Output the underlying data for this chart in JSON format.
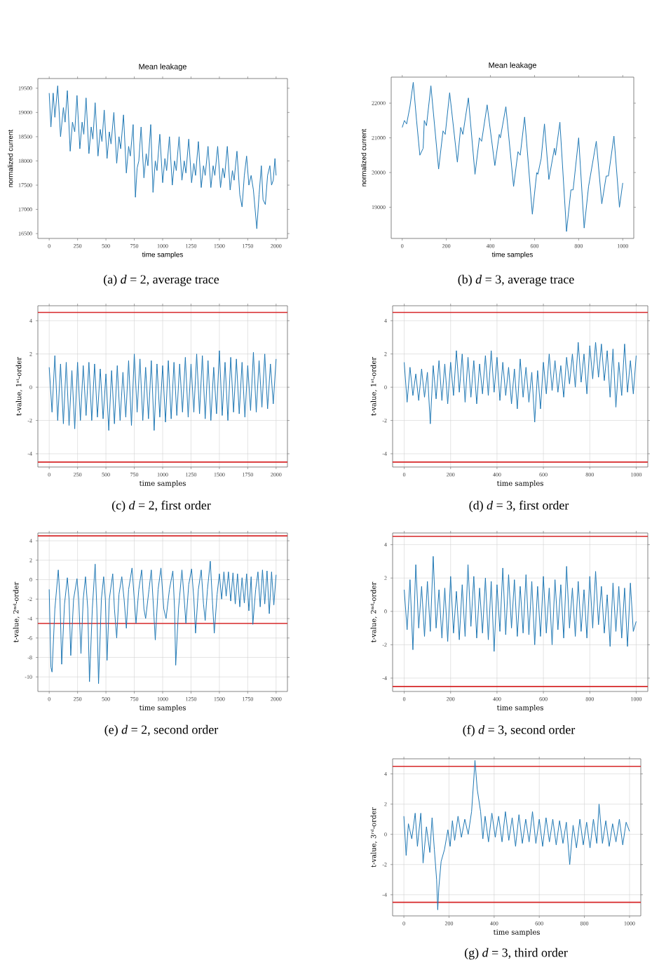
{
  "chart_data": [
    {
      "type": "line",
      "title": "Mean leakage",
      "xlabel": "time samples",
      "ylabel": "normalized current",
      "annotations": [
        "(a) *d* = 2, average trace"
      ],
      "xlim": [
        -100,
        2100
      ],
      "ylim": [
        16400,
        19700
      ],
      "xticks": [
        0,
        250,
        500,
        750,
        1000,
        1250,
        1500,
        1750,
        2000
      ],
      "yticks": [
        16500,
        17000,
        17500,
        18000,
        18500,
        19000,
        19500
      ],
      "grid": false,
      "series": [
        {
          "color": "#1f77b4",
          "x": [
            0,
            15,
            35,
            50,
            75,
            100,
            125,
            140,
            160,
            185,
            205,
            225,
            245,
            270,
            290,
            305,
            325,
            350,
            370,
            385,
            405,
            430,
            450,
            465,
            485,
            510,
            530,
            545,
            570,
            595,
            615,
            630,
            655,
            680,
            700,
            715,
            740,
            760,
            775,
            790,
            810,
            835,
            855,
            870,
            895,
            915,
            935,
            950,
            975,
            1000,
            1020,
            1035,
            1060,
            1085,
            1105,
            1120,
            1145,
            1170,
            1190,
            1205,
            1230,
            1255,
            1275,
            1290,
            1315,
            1340,
            1360,
            1375,
            1400,
            1425,
            1445,
            1460,
            1485,
            1510,
            1530,
            1545,
            1570,
            1595,
            1615,
            1630,
            1655,
            1680,
            1700,
            1720,
            1740,
            1760,
            1780,
            1800,
            1830,
            1850,
            1870,
            1885,
            1905,
            1925,
            1945,
            1960,
            1975,
            1990,
            2000
          ],
          "values": [
            19400,
            18700,
            19400,
            18900,
            19550,
            18500,
            19100,
            18800,
            19450,
            18200,
            18800,
            18600,
            19350,
            18250,
            18800,
            18550,
            19300,
            18150,
            18700,
            18450,
            19200,
            18100,
            18650,
            18400,
            19050,
            18050,
            18600,
            18350,
            19000,
            17950,
            18500,
            18250,
            18950,
            17750,
            18300,
            18100,
            18750,
            17250,
            17850,
            18000,
            18700,
            17650,
            18150,
            17900,
            18750,
            17350,
            18000,
            17800,
            18550,
            17550,
            18050,
            17800,
            18500,
            17500,
            18000,
            17800,
            18500,
            17600,
            18000,
            17750,
            18450,
            17550,
            17950,
            17700,
            18400,
            17450,
            17900,
            17700,
            18300,
            17450,
            17900,
            17700,
            18300,
            17450,
            17850,
            17650,
            18300,
            17400,
            17800,
            17600,
            18200,
            17300,
            17050,
            17700,
            18100,
            17500,
            17700,
            17400,
            16600,
            17300,
            17900,
            17200,
            17100,
            17700,
            17900,
            17500,
            17600,
            18050,
            17700
          ]
        }
      ]
    },
    {
      "type": "line",
      "title": "Mean leakage",
      "xlabel": "time samples",
      "ylabel": "normalized current",
      "annotations": [
        "(b) *d* = 3, average trace"
      ],
      "xlim": [
        -50,
        1050
      ],
      "ylim": [
        18100,
        22750
      ],
      "xticks": [
        0,
        200,
        400,
        600,
        800,
        1000
      ],
      "yticks": [
        19000,
        20000,
        21000,
        22000
      ],
      "grid": false,
      "series": [
        {
          "color": "#1f77b4",
          "x": [
            0,
            10,
            20,
            35,
            50,
            65,
            80,
            95,
            100,
            110,
            130,
            165,
            185,
            195,
            215,
            250,
            265,
            275,
            300,
            330,
            350,
            360,
            385,
            420,
            440,
            445,
            470,
            505,
            525,
            535,
            555,
            590,
            610,
            615,
            630,
            645,
            665,
            690,
            695,
            715,
            745,
            765,
            775,
            800,
            825,
            845,
            880,
            905,
            925,
            935,
            960,
            985,
            1000
          ],
          "values": [
            21300,
            21500,
            21400,
            21900,
            22600,
            21500,
            20500,
            20700,
            21500,
            21350,
            22500,
            20100,
            21200,
            21100,
            22300,
            20300,
            21300,
            21100,
            22150,
            19950,
            21000,
            20900,
            21950,
            20200,
            21100,
            21000,
            21900,
            19600,
            20600,
            20500,
            21600,
            18800,
            20000,
            19950,
            20400,
            21400,
            19800,
            20700,
            20500,
            21450,
            18300,
            19500,
            19500,
            21000,
            18400,
            19600,
            20900,
            19100,
            19900,
            19900,
            21050,
            19000,
            19700
          ]
        }
      ]
    },
    {
      "type": "line",
      "xlabel": "time samples",
      "ylabel": "t-value, 1ˢᵗ-order",
      "annotations": [
        "(c) *d* = 2, first order"
      ],
      "xlim": [
        -100,
        2100
      ],
      "ylim": [
        -4.8,
        4.9
      ],
      "xticks": [
        0,
        250,
        500,
        750,
        1000,
        1250,
        1500,
        1750,
        2000
      ],
      "yticks": [
        -4,
        -2,
        0,
        2,
        4
      ],
      "grid": true,
      "ref_lines": [
        {
          "axis": "y",
          "value": 4.5,
          "color": "#d62728"
        },
        {
          "axis": "y",
          "value": -4.5,
          "color": "#d62728"
        }
      ],
      "series": [
        {
          "color": "#1f77b4",
          "x": [
            0,
            25,
            50,
            75,
            100,
            125,
            150,
            175,
            200,
            225,
            250,
            275,
            300,
            325,
            350,
            375,
            400,
            425,
            450,
            475,
            500,
            525,
            550,
            575,
            600,
            625,
            650,
            675,
            700,
            725,
            750,
            775,
            800,
            825,
            850,
            875,
            900,
            925,
            950,
            975,
            1000,
            1025,
            1050,
            1075,
            1100,
            1125,
            1150,
            1175,
            1200,
            1225,
            1250,
            1275,
            1300,
            1325,
            1350,
            1375,
            1400,
            1425,
            1450,
            1475,
            1500,
            1525,
            1550,
            1575,
            1600,
            1625,
            1650,
            1675,
            1700,
            1725,
            1750,
            1775,
            1800,
            1825,
            1850,
            1875,
            1900,
            1925,
            1950,
            1975,
            2000
          ],
          "values": [
            1.2,
            -1.5,
            1.9,
            -2.0,
            1.4,
            -2.2,
            1.5,
            -2.3,
            1.0,
            -2.5,
            1.5,
            -2.0,
            1.3,
            -1.7,
            1.5,
            -2.0,
            1.4,
            -1.8,
            1.1,
            -1.9,
            0.8,
            -2.6,
            1.0,
            -2.2,
            1.3,
            -2.0,
            0.9,
            -1.8,
            1.6,
            -2.3,
            2.0,
            -1.5,
            1.7,
            -2.0,
            1.2,
            -1.9,
            1.6,
            -2.6,
            1.4,
            -1.8,
            1.3,
            -2.1,
            1.6,
            -1.9,
            1.5,
            -1.7,
            1.4,
            -1.5,
            1.8,
            -1.8,
            1.4,
            -1.5,
            2.0,
            -1.6,
            1.9,
            -1.9,
            1.6,
            -2.0,
            1.2,
            -1.6,
            2.2,
            -1.7,
            1.5,
            -2.0,
            1.8,
            -1.5,
            1.7,
            -1.6,
            1.5,
            -1.8,
            1.3,
            -1.4,
            2.1,
            -1.5,
            1.6,
            -1.2,
            2.0,
            -1.3,
            1.4,
            -1.0,
            1.7
          ]
        }
      ]
    },
    {
      "type": "line",
      "xlabel": "time samples",
      "ylabel": "t-value, 1ˢᵗ-order",
      "annotations": [
        "(d) *d* = 3, first order"
      ],
      "xlim": [
        -50,
        1050
      ],
      "ylim": [
        -4.8,
        4.9
      ],
      "xticks": [
        0,
        200,
        400,
        600,
        800,
        1000
      ],
      "yticks": [
        -4,
        -2,
        0,
        2,
        4
      ],
      "grid": true,
      "ref_lines": [
        {
          "axis": "y",
          "value": 4.5,
          "color": "#d62728"
        },
        {
          "axis": "y",
          "value": -4.5,
          "color": "#d62728"
        }
      ],
      "series": [
        {
          "color": "#1f77b4",
          "x": [
            0,
            12.5,
            25,
            37.5,
            50,
            62.5,
            75,
            87.5,
            100,
            112.5,
            125,
            137.5,
            150,
            162.5,
            175,
            187.5,
            200,
            212.5,
            225,
            237.5,
            250,
            262.5,
            275,
            287.5,
            300,
            312.5,
            325,
            337.5,
            350,
            362.5,
            375,
            387.5,
            400,
            412.5,
            425,
            437.5,
            450,
            462.5,
            475,
            487.5,
            500,
            512.5,
            525,
            537.5,
            550,
            562.5,
            575,
            587.5,
            600,
            612.5,
            625,
            637.5,
            650,
            662.5,
            675,
            687.5,
            700,
            712.5,
            725,
            737.5,
            750,
            762.5,
            775,
            787.5,
            800,
            812.5,
            825,
            837.5,
            850,
            862.5,
            875,
            887.5,
            900,
            912.5,
            925,
            937.5,
            950,
            962.5,
            975,
            987.5,
            1000
          ],
          "values": [
            1.5,
            -0.9,
            1.2,
            -0.5,
            0.8,
            -0.8,
            1.1,
            -0.6,
            0.9,
            -2.2,
            1.3,
            -0.7,
            1.6,
            -0.8,
            1.4,
            -1.0,
            1.5,
            -0.5,
            2.2,
            -0.3,
            2.0,
            -0.9,
            1.8,
            -0.6,
            1.6,
            -1.0,
            1.4,
            -0.4,
            1.9,
            -0.5,
            2.2,
            -0.3,
            1.8,
            -0.8,
            1.5,
            -0.5,
            1.2,
            -1.0,
            1.1,
            -1.3,
            1.7,
            -0.6,
            1.2,
            -0.9,
            0.9,
            -2.1,
            1.0,
            -1.3,
            1.5,
            -0.4,
            2.0,
            -0.2,
            1.6,
            -0.3,
            1.3,
            -0.6,
            1.8,
            0.2,
            2.0,
            0.0,
            2.7,
            0.3,
            2.0,
            -0.4,
            2.5,
            0.5,
            2.7,
            0.6,
            2.6,
            0.4,
            2.2,
            -0.6,
            2.3,
            -1.2,
            1.5,
            -0.5,
            2.6,
            -0.3,
            1.6,
            -0.4,
            1.9
          ]
        }
      ]
    },
    {
      "type": "line",
      "xlabel": "time samples",
      "ylabel": "t-value, 2ⁿᵈ-order",
      "annotations": [
        "(e) *d* = 2, second order"
      ],
      "xlim": [
        -100,
        2100
      ],
      "ylim": [
        -11.5,
        4.8
      ],
      "xticks": [
        0,
        250,
        500,
        750,
        1000,
        1250,
        1500,
        1750,
        2000
      ],
      "yticks": [
        -10,
        -8,
        -6,
        -4,
        -2,
        0,
        2,
        4
      ],
      "grid": true,
      "ref_lines": [
        {
          "axis": "y",
          "value": 4.5,
          "color": "#d62728"
        },
        {
          "axis": "y",
          "value": -4.5,
          "color": "#d62728"
        }
      ],
      "series": [
        {
          "color": "#1f77b4",
          "x": [
            0,
            15,
            25,
            50,
            80,
            95,
            110,
            135,
            160,
            175,
            190,
            215,
            245,
            260,
            280,
            300,
            320,
            340,
            355,
            380,
            405,
            420,
            435,
            460,
            480,
            495,
            510,
            530,
            560,
            575,
            595,
            615,
            640,
            660,
            680,
            700,
            730,
            750,
            765,
            790,
            815,
            835,
            850,
            880,
            900,
            920,
            935,
            960,
            985,
            1010,
            1030,
            1060,
            1090,
            1105,
            1115,
            1140,
            1170,
            1190,
            1205,
            1230,
            1255,
            1275,
            1290,
            1315,
            1340,
            1360,
            1375,
            1395,
            1420,
            1440,
            1455,
            1480,
            1500,
            1520,
            1540,
            1560,
            1580,
            1600,
            1620,
            1640,
            1660,
            1680,
            1700,
            1720,
            1740,
            1760,
            1780,
            1795,
            1820,
            1840,
            1860,
            1880,
            1900,
            1920,
            1940,
            1960,
            1980,
            2000
          ],
          "values": [
            -1.0,
            -9.0,
            -9.5,
            -3.0,
            1.0,
            -2.0,
            -8.7,
            -2.5,
            0.2,
            -2.0,
            -7.8,
            -2.0,
            0.1,
            -2.0,
            -7.6,
            -2.0,
            0.3,
            -3.0,
            -10.5,
            -3.0,
            1.6,
            -3.0,
            -10.7,
            -2.0,
            0.3,
            -2.0,
            -8.3,
            -2.0,
            0.6,
            -3.0,
            -6.0,
            -1.5,
            0.3,
            -2.0,
            -5.0,
            -1.0,
            1.2,
            -2.0,
            -4.5,
            -1.0,
            1.0,
            -3.0,
            -4.0,
            -1.0,
            1.0,
            -3.0,
            -6.2,
            -1.0,
            1.2,
            -3.0,
            -4.0,
            -1.0,
            0.9,
            -3.0,
            -8.8,
            -3.0,
            1.0,
            -2.0,
            -4.5,
            -0.5,
            1.1,
            -2.0,
            -5.5,
            -1.0,
            1.0,
            -2.5,
            -4.2,
            -1.0,
            1.9,
            -2.5,
            -5.5,
            -1.5,
            0.6,
            -2.0,
            0.8,
            -1.7,
            0.8,
            -2.2,
            0.7,
            -2.5,
            0.6,
            -2.8,
            0.2,
            -2.4,
            0.6,
            -3.2,
            0.3,
            -4.6,
            -1.0,
            0.8,
            -2.8,
            1.0,
            -2.5,
            0.9,
            -3.5,
            0.8,
            -2.6,
            0.5
          ]
        }
      ]
    },
    {
      "type": "line",
      "xlabel": "time samples",
      "ylabel": "t-value, 2ⁿᵈ-order",
      "annotations": [
        "(f) *d* = 3, second order"
      ],
      "xlim": [
        -50,
        1050
      ],
      "ylim": [
        -4.8,
        4.7
      ],
      "xticks": [
        0,
        200,
        400,
        600,
        800,
        1000
      ],
      "yticks": [
        -4,
        -2,
        0,
        2,
        4
      ],
      "grid": true,
      "ref_lines": [
        {
          "axis": "y",
          "value": 4.5,
          "color": "#d62728"
        },
        {
          "axis": "y",
          "value": -4.5,
          "color": "#d62728"
        }
      ],
      "series": [
        {
          "color": "#1f77b4",
          "x": [
            0,
            12.5,
            25,
            37.5,
            50,
            62.5,
            75,
            87.5,
            100,
            112.5,
            125,
            137.5,
            150,
            162.5,
            175,
            187.5,
            200,
            212.5,
            225,
            237.5,
            250,
            262.5,
            275,
            287.5,
            300,
            312.5,
            325,
            337.5,
            350,
            362.5,
            375,
            387.5,
            400,
            412.5,
            425,
            437.5,
            450,
            462.5,
            475,
            487.5,
            500,
            512.5,
            525,
            537.5,
            550,
            562.5,
            575,
            587.5,
            600,
            612.5,
            625,
            637.5,
            650,
            662.5,
            675,
            687.5,
            700,
            712.5,
            725,
            737.5,
            750,
            762.5,
            775,
            787.5,
            800,
            812.5,
            825,
            837.5,
            850,
            862.5,
            875,
            887.5,
            900,
            912.5,
            925,
            937.5,
            950,
            962.5,
            975,
            987.5,
            1000
          ],
          "values": [
            1.3,
            -1.1,
            1.9,
            -2.3,
            2.8,
            -1.0,
            1.5,
            -1.5,
            1.8,
            -1.2,
            3.3,
            -1.0,
            1.3,
            -1.6,
            1.4,
            -1.8,
            2.1,
            -1.3,
            1.2,
            -1.7,
            1.6,
            -1.5,
            2.8,
            -0.9,
            2.1,
            -1.6,
            1.4,
            -1.3,
            2.0,
            -1.7,
            1.8,
            -2.4,
            1.6,
            -1.2,
            2.6,
            -1.4,
            2.2,
            -1.0,
            1.9,
            -1.5,
            1.5,
            -1.3,
            2.2,
            -1.4,
            1.8,
            -2.0,
            1.5,
            -1.5,
            2.1,
            -1.3,
            1.4,
            -2.0,
            1.9,
            -1.1,
            1.6,
            -1.6,
            2.7,
            -1.0,
            1.4,
            -1.5,
            1.8,
            -1.2,
            1.3,
            -1.6,
            2.1,
            -1.0,
            2.4,
            -0.8,
            1.5,
            -1.3,
            1.0,
            -2.1,
            1.7,
            -1.2,
            1.5,
            -1.6,
            1.4,
            -2.1,
            1.7,
            -1.2,
            -0.6
          ]
        }
      ]
    },
    {
      "type": "line",
      "xlabel": "time samples",
      "ylabel": "t-value, 3ʳᵈ-order",
      "annotations": [
        "(g) *d* = 3, third order"
      ],
      "xlim": [
        -50,
        1050
      ],
      "ylim": [
        -5.4,
        5.0
      ],
      "xticks": [
        0,
        200,
        400,
        600,
        800,
        1000
      ],
      "yticks": [
        -4,
        -2,
        0,
        2,
        4
      ],
      "grid": true,
      "ref_lines": [
        {
          "axis": "y",
          "value": 4.5,
          "color": "#d62728"
        },
        {
          "axis": "y",
          "value": -4.5,
          "color": "#d62728"
        }
      ],
      "series": [
        {
          "color": "#1f77b4",
          "x": [
            0,
            10,
            20,
            35,
            50,
            60,
            75,
            85,
            100,
            115,
            125,
            135,
            145,
            150,
            155,
            165,
            180,
            195,
            205,
            215,
            225,
            240,
            255,
            270,
            285,
            300,
            310,
            315,
            325,
            340,
            350,
            360,
            375,
            390,
            405,
            420,
            435,
            450,
            465,
            480,
            495,
            510,
            525,
            540,
            555,
            570,
            585,
            600,
            615,
            630,
            645,
            660,
            675,
            690,
            705,
            720,
            735,
            750,
            765,
            780,
            795,
            810,
            825,
            840,
            855,
            865,
            880,
            895,
            910,
            925,
            940,
            955,
            970,
            985,
            1000
          ],
          "values": [
            1.2,
            -1.4,
            0.7,
            -0.3,
            1.4,
            -0.8,
            1.4,
            -1.9,
            0.5,
            -1.2,
            1.1,
            -1.0,
            -3.0,
            -5.0,
            -3.5,
            -1.8,
            -1.0,
            0.3,
            -0.8,
            0.9,
            -0.4,
            1.2,
            -0.2,
            1.0,
            0.0,
            1.5,
            3.7,
            4.9,
            3.0,
            1.5,
            -0.3,
            1.2,
            -0.5,
            1.4,
            -0.2,
            1.2,
            -0.5,
            1.5,
            -0.4,
            1.1,
            -0.8,
            1.3,
            -0.6,
            1.0,
            -0.5,
            1.5,
            -0.6,
            1.0,
            -0.8,
            1.1,
            -0.5,
            1.0,
            -0.7,
            0.9,
            -0.6,
            0.8,
            -2.0,
            0.6,
            -0.9,
            1.0,
            -0.7,
            0.8,
            -0.9,
            1.0,
            -0.6,
            2.0,
            -0.6,
            0.9,
            -0.8,
            0.7,
            -0.5,
            1.0,
            -0.7,
            0.8,
            0.2
          ]
        }
      ]
    }
  ]
}
